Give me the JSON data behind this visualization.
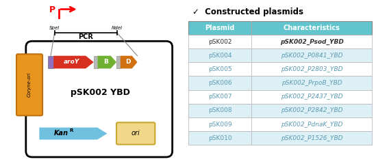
{
  "title_check": "✓  Constructed plasmids",
  "table_header": [
    "Plasmid",
    "Characteristics"
  ],
  "table_rows": [
    [
      "pSK002",
      "pSK002_Psod_YBD"
    ],
    [
      "pSK004",
      "pSK002_P0841_YBD"
    ],
    [
      "pSK005",
      "pSK002_P2803_YBD"
    ],
    [
      "pSK006",
      "pSK002_PrpoB_YBD"
    ],
    [
      "pSK007",
      "pSK002_P2437_YBD"
    ],
    [
      "pSK008",
      "pSK002_P2842_YBD"
    ],
    [
      "pSK009",
      "pSK002_PdnaK_YBD"
    ],
    [
      "pSK010",
      "pSK002_P1526_YBD"
    ]
  ],
  "header_bg": "#62c4cc",
  "row_bg_light": "#ddf0f5",
  "row_bg_white": "#ffffff",
  "header_text_color": "#ffffff",
  "row_text_color": "#5a9ab5",
  "first_row_text_color": "#333333",
  "plasmid_label": "pSK002 YBD",
  "coryne_label": "Coryne-ori",
  "kan_label": "Kan",
  "kan_superscript": "R",
  "ori_label": "ori",
  "aroy_label": "aroY",
  "b_label": "B",
  "d_label": "D",
  "pcr_label": "PCR",
  "spei_label": "SpeI",
  "ndei_label": "NdeI",
  "p_label": "P",
  "coryne_color": "#e8951e",
  "coryne_edge": "#c07010",
  "ori_color": "#f0d888",
  "ori_edge": "#c8a830",
  "kan_color": "#70c0e0",
  "aroy_color": "#d83020",
  "b_color": "#70b030",
  "d_color": "#d07010",
  "prom_color": "#9070c0",
  "spacer_color": "#b8b8b8"
}
